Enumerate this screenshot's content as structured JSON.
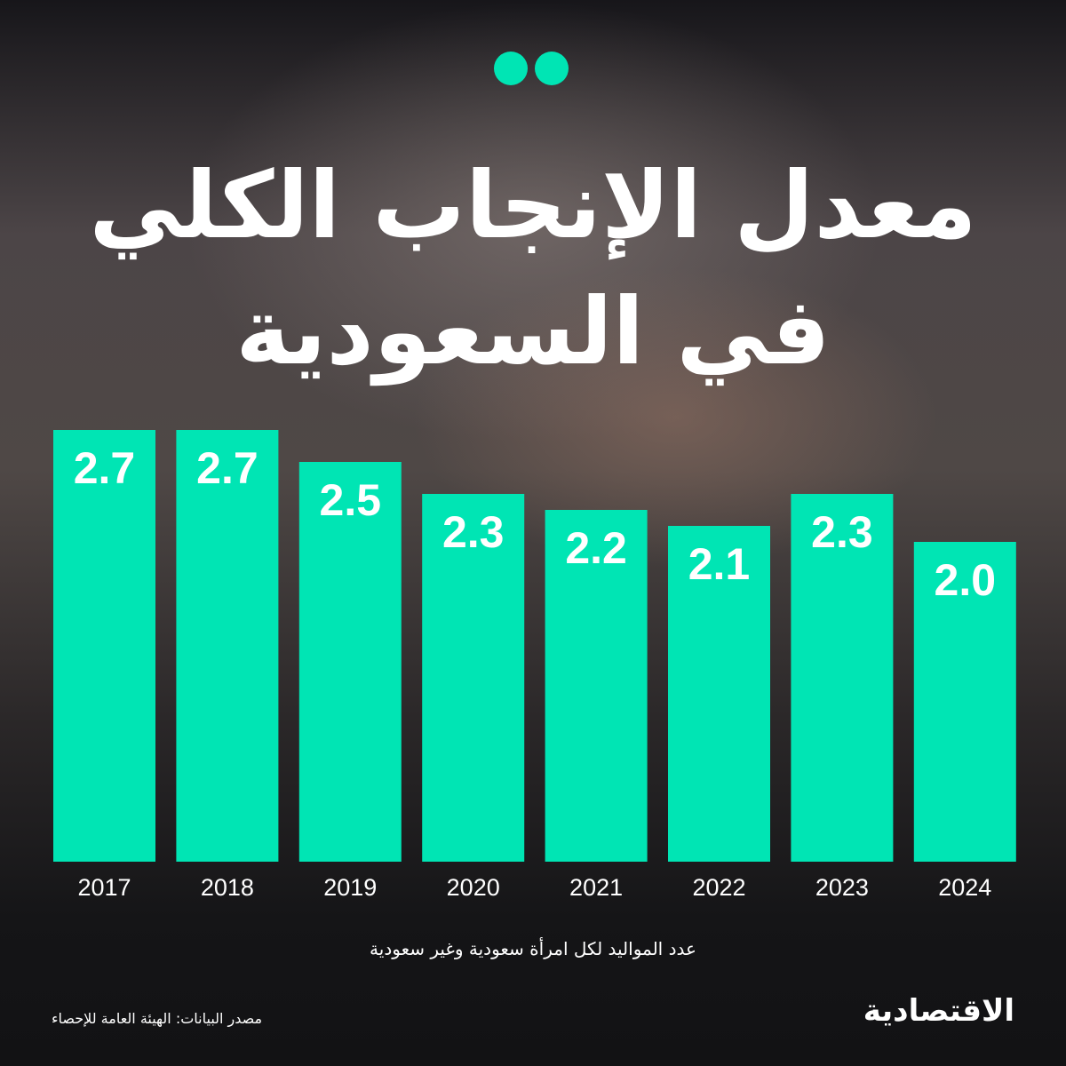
{
  "header": {
    "title_line1": "معدل الإنجاب الكلي",
    "title_line2": "في السعودية",
    "accent_color": "#00e5b4",
    "decor_icon": "quotation-dots-icon"
  },
  "chart_data": {
    "type": "bar",
    "title": "معدل الإنجاب الكلي في السعودية",
    "categories": [
      "2017",
      "2018",
      "2019",
      "2020",
      "2021",
      "2022",
      "2023",
      "2024"
    ],
    "values": [
      2.7,
      2.7,
      2.5,
      2.3,
      2.2,
      2.1,
      2.3,
      2.0
    ],
    "value_labels": [
      "2.7",
      "2.7",
      "2.5",
      "2.3",
      "2.2",
      "2.1",
      "2.3",
      "2.0"
    ],
    "xlabel": "",
    "ylabel": "",
    "bar_color": "#00e5b4",
    "grid": false,
    "legend": "none"
  },
  "footer": {
    "unit_note": "عدد المواليد لكل امرأة سعودية وغير سعودية",
    "source": "مصدر البيانات: الهيئة العامة للإحصاء",
    "brand": "الاقتصادية"
  }
}
